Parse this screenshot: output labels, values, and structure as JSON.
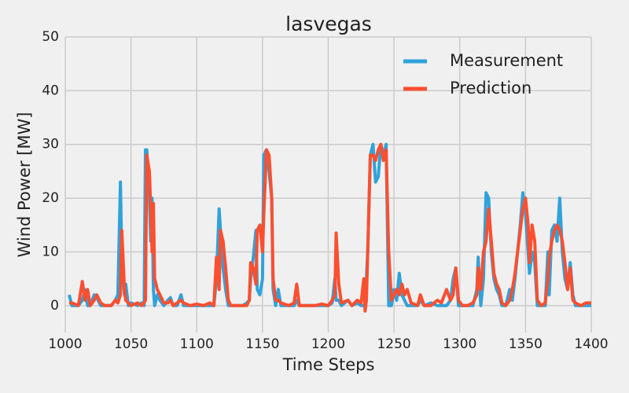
{
  "chart_data": {
    "type": "line",
    "title": "lasvegas",
    "xlabel": "Time Steps",
    "ylabel": "Wind Power [MW]",
    "x": [
      1003,
      1005,
      1010,
      1013,
      1015,
      1017,
      1019,
      1022,
      1024,
      1027,
      1030,
      1035,
      1038,
      1040,
      1042,
      1043,
      1045,
      1046,
      1048,
      1050,
      1055,
      1058,
      1060,
      1061,
      1062,
      1064,
      1065,
      1066,
      1067,
      1068,
      1070,
      1072,
      1075,
      1078,
      1080,
      1082,
      1085,
      1088,
      1090,
      1095,
      1100,
      1105,
      1110,
      1113,
      1115,
      1117,
      1118,
      1120,
      1122,
      1124,
      1126,
      1130,
      1135,
      1138,
      1140,
      1141,
      1143,
      1145,
      1146,
      1148,
      1150,
      1151,
      1153,
      1155,
      1157,
      1158,
      1160,
      1162,
      1164,
      1170,
      1174,
      1176,
      1178,
      1185,
      1190,
      1195,
      1200,
      1203,
      1205,
      1206,
      1208,
      1210,
      1215,
      1218,
      1222,
      1225,
      1227,
      1228,
      1229,
      1230,
      1232,
      1234,
      1236,
      1238,
      1240,
      1242,
      1244,
      1246,
      1248,
      1250,
      1252,
      1254,
      1256,
      1258,
      1260,
      1263,
      1268,
      1270,
      1273,
      1278,
      1283,
      1286,
      1290,
      1293,
      1295,
      1297,
      1299,
      1302,
      1306,
      1310,
      1313,
      1314,
      1316,
      1318,
      1320,
      1322,
      1324,
      1326,
      1328,
      1330,
      1332,
      1335,
      1338,
      1340,
      1342,
      1344,
      1346,
      1348,
      1350,
      1352,
      1353,
      1355,
      1357,
      1359,
      1362,
      1365,
      1367,
      1368,
      1370,
      1372,
      1374,
      1376,
      1378,
      1380,
      1382,
      1384,
      1386,
      1388,
      1392,
      1396,
      1400
    ],
    "series": [
      {
        "name": "Measurement",
        "color": "#30a2da",
        "values": [
          2,
          0,
          0,
          1,
          3,
          0,
          0,
          2,
          1.5,
          0,
          0,
          0,
          1,
          2,
          23,
          8,
          2,
          4,
          0,
          0.5,
          0,
          0.5,
          0,
          29,
          29,
          20,
          12,
          20,
          3,
          0,
          2,
          1,
          0,
          1,
          1.5,
          0,
          0,
          2,
          0,
          0,
          0,
          0,
          0,
          0,
          5,
          18,
          14,
          7,
          3,
          0,
          0,
          0,
          0,
          0.5,
          1,
          5,
          9,
          14,
          3,
          2,
          5,
          28,
          29,
          25,
          20,
          3,
          0,
          3,
          0,
          0,
          0,
          1,
          0,
          0,
          0,
          0,
          0,
          0.5,
          5,
          1,
          1,
          0,
          1,
          0,
          0.5,
          0,
          0,
          0,
          5,
          10,
          28,
          30,
          23,
          24,
          30,
          28,
          30,
          0,
          0,
          3,
          1,
          6,
          2,
          1,
          0,
          0,
          0,
          1,
          0,
          0.5,
          0,
          0,
          0,
          1,
          5,
          7,
          0,
          0,
          0,
          0,
          3,
          9,
          0,
          5,
          21,
          20,
          10,
          5,
          3,
          2,
          0,
          0,
          3,
          1,
          5,
          10,
          15,
          21,
          17,
          10,
          6,
          10,
          8,
          0,
          0,
          0,
          10,
          2,
          14,
          15,
          12,
          20,
          10,
          5,
          3,
          8,
          2,
          0,
          0,
          0,
          0
        ]
      },
      {
        "name": "Prediction",
        "color": "#fc4f30",
        "values": [
          0.5,
          0.5,
          0,
          4.5,
          1,
          3,
          0,
          1,
          2,
          0.5,
          0,
          0,
          1,
          0.5,
          2,
          14,
          3,
          1,
          0.5,
          0,
          0.5,
          0,
          0.5,
          1,
          28,
          25,
          18,
          10,
          19,
          5,
          3,
          2,
          0.5,
          0.5,
          1,
          0,
          0.5,
          1,
          0.5,
          0,
          0.3,
          0,
          0.5,
          0,
          9,
          3,
          14,
          12,
          7,
          1,
          0,
          0,
          0,
          0,
          1,
          8,
          7,
          4,
          14,
          15,
          10,
          17,
          29,
          28,
          20,
          5,
          1,
          1,
          0.5,
          0,
          0.5,
          4,
          0,
          0,
          0,
          0.3,
          0,
          1,
          2,
          13.5,
          4,
          0.5,
          1,
          0,
          1,
          0.5,
          5,
          -1,
          1,
          10,
          28,
          28,
          27,
          29,
          30,
          27,
          29,
          10,
          1,
          2,
          3,
          2,
          4,
          2,
          3,
          0.5,
          0,
          2,
          0,
          0,
          1,
          0.5,
          3,
          1,
          2,
          7,
          1,
          0,
          0,
          0.5,
          2,
          7,
          3,
          10,
          12,
          18,
          12,
          6,
          4,
          3,
          0.5,
          0,
          1,
          3,
          6,
          10,
          14,
          18,
          20,
          15,
          8,
          15,
          12,
          1,
          0,
          0.5,
          5,
          9,
          12,
          14,
          15,
          14,
          12,
          8,
          3,
          7,
          1,
          0.5,
          0,
          0.5,
          0.5
        ]
      }
    ],
    "xlim": [
      1000,
      1400
    ],
    "xticks": [
      1000,
      1050,
      1100,
      1150,
      1200,
      1250,
      1300,
      1350,
      1400
    ],
    "ylim": [
      -5,
      50
    ],
    "yticks": [
      0,
      10,
      20,
      30,
      40,
      50
    ],
    "grid": true,
    "legend": "upper right"
  }
}
